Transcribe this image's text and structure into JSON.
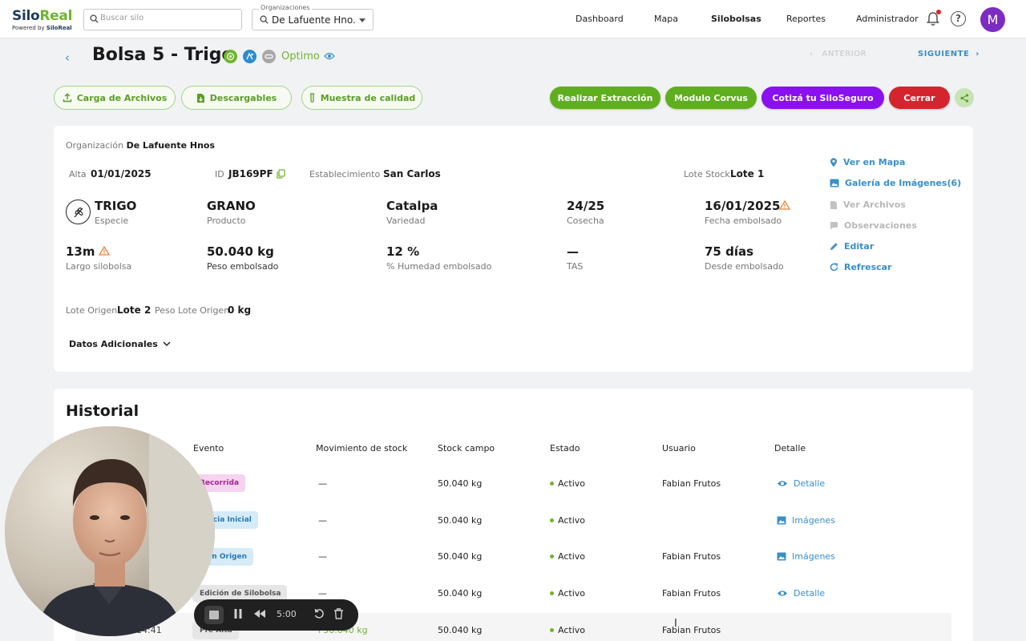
{
  "brand": {
    "name_a": "Silo",
    "name_b": "Real",
    "powered": "Powered by ",
    "powered_brand": "SiloReal"
  },
  "search": {
    "placeholder": "Buscar silo"
  },
  "org_select": {
    "label": "Organizaciones",
    "value": "De Lafuente Hno..."
  },
  "nav": [
    "Dashboard",
    "Mapa",
    "Silobolsas",
    "Reportes",
    "Administrador"
  ],
  "nav_active": "Silobolsas",
  "user": {
    "initial": "M"
  },
  "header": {
    "title": "Bolsa 5 - Trigo",
    "status": "Optimo",
    "prev": "ANTERIOR",
    "next": "SIGUIENTE"
  },
  "actions": {
    "carga": "Carga de Archivos",
    "descargables": "Descargables",
    "muestra": "Muestra de calidad",
    "extraccion": "Realizar Extracción",
    "corvus": "Modulo Corvus",
    "seguro": "Cotizá tu SiloSeguro",
    "cerrar": "Cerrar"
  },
  "info": {
    "org_label": "Organización",
    "org_value": "De Lafuente Hnos",
    "alta_label": "Alta",
    "alta_value": "01/01/2025",
    "id_label": "ID",
    "id_value": "JB169PF",
    "est_label": "Establecimiento",
    "est_value": "San Carlos",
    "lote_stock_label": "Lote Stock",
    "lote_stock_value": "Lote 1",
    "especie_value": "TRIGO",
    "especie_label": "Especie",
    "producto_value": "GRANO",
    "producto_label": "Producto",
    "variedad_value": "Catalpa",
    "variedad_label": "Variedad",
    "cosecha_value": "24/25",
    "cosecha_label": "Cosecha",
    "fecha_value": "16/01/2025",
    "fecha_label": "Fecha embolsado",
    "largo_value": "13m",
    "largo_label": "Largo silobolsa",
    "peso_value": "50.040 kg",
    "peso_label": "Peso embolsado",
    "humedad_value": "12 %",
    "humedad_label": "% Humedad embolsado",
    "tas_value": "—",
    "tas_label": "TAS",
    "dias_value": "75 días",
    "dias_label": "Desde embolsado",
    "lote_origen_label": "Lote Origen",
    "lote_origen_value": "Lote 2",
    "peso_origen_label": "Peso Lote Origen",
    "peso_origen_value": "0 kg",
    "adicionales": "Datos Adicionales"
  },
  "side_links": {
    "mapa": "Ver en Mapa",
    "galeria": "Galería de Imágenes(6)",
    "archivos": "Ver Archivos",
    "observaciones": "Observaciones",
    "editar": "Editar",
    "refrescar": "Refrescar"
  },
  "historial": {
    "title": "Historial",
    "columns": [
      "Evento",
      "Movimiento de stock",
      "Stock campo",
      "Estado",
      "Usuario",
      "Detalle"
    ],
    "rows": [
      {
        "date": "",
        "evento": "Recorrida",
        "mov": "—",
        "stock": "50.040 kg",
        "estado": "Activo",
        "usuario": "Fabian Frutos",
        "detalle": "Detalle"
      },
      {
        "date": "",
        "evento": "tencia Inicial",
        "mov": "—",
        "stock": "50.040 kg",
        "estado": "Activo",
        "usuario": "",
        "detalle": "Imágenes"
      },
      {
        "date": "",
        "evento": "a en Origen",
        "mov": "—",
        "stock": "50.040 kg",
        "estado": "Activo",
        "usuario": "Fabian Frutos",
        "detalle": "Imágenes"
      },
      {
        "date": "",
        "evento": "Edición de Silobolsa",
        "mov": "—",
        "stock": "50.040 kg",
        "estado": "Activo",
        "usuario": "Fabian Frutos",
        "detalle": "Detalle"
      },
      {
        "date": "14:41",
        "evento": "Pre Alta",
        "mov": "+50.040 kg",
        "stock": "50.040 kg",
        "estado": "Activo",
        "usuario": "Fabian Frutos",
        "detalle": ""
      }
    ]
  },
  "recorder": {
    "time": "5:00"
  },
  "colors": {
    "brand_green": "#6fb52c",
    "link_blue": "#3a8fc8",
    "purple": "#8a10f0",
    "red": "#d4252f"
  }
}
